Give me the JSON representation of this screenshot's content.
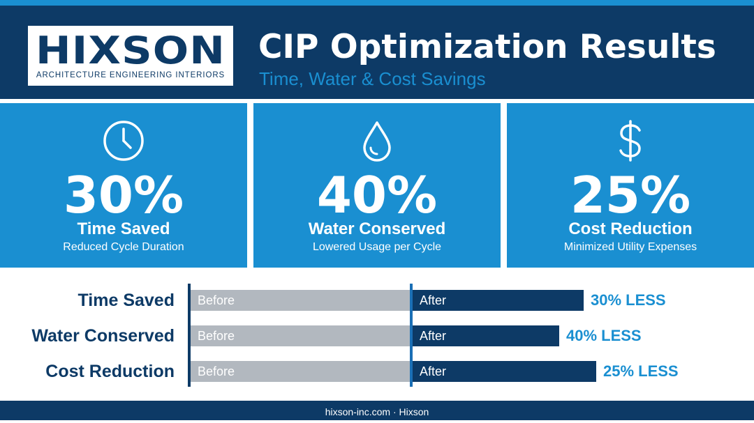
{
  "logo": {
    "word": "HIXSON",
    "tagline": "ARCHITECTURE ENGINEERING INTERIORS"
  },
  "header": {
    "title": "CIP Optimization Results",
    "subtitle": "Time, Water & Cost Savings"
  },
  "colors": {
    "navy": "#0d3a66",
    "blue": "#1a8fd1",
    "gray": "#b2b8bf",
    "white": "#ffffff"
  },
  "panels": [
    {
      "icon": "clock-icon",
      "value": "30%",
      "label": "Time Saved",
      "sub": "Reduced Cycle Duration"
    },
    {
      "icon": "water-drop-icon",
      "value": "40%",
      "label": "Water Conserved",
      "sub": "Lowered Usage per Cycle"
    },
    {
      "icon": "dollar-icon",
      "value": "25%",
      "label": "Cost Reduction",
      "sub": "Minimized Utility Expenses"
    }
  ],
  "comparison": {
    "before_label": "Before",
    "after_label": "After",
    "rows": [
      {
        "label": "Time Saved",
        "after_fraction": 0.7,
        "result": "30% LESS"
      },
      {
        "label": "Water Conserved",
        "after_fraction": 0.6,
        "result": "40% LESS"
      },
      {
        "label": "Cost Reduction",
        "after_fraction": 0.75,
        "result": "25% LESS"
      }
    ]
  },
  "footer": {
    "text": "hixson-inc.com · Hixson"
  }
}
